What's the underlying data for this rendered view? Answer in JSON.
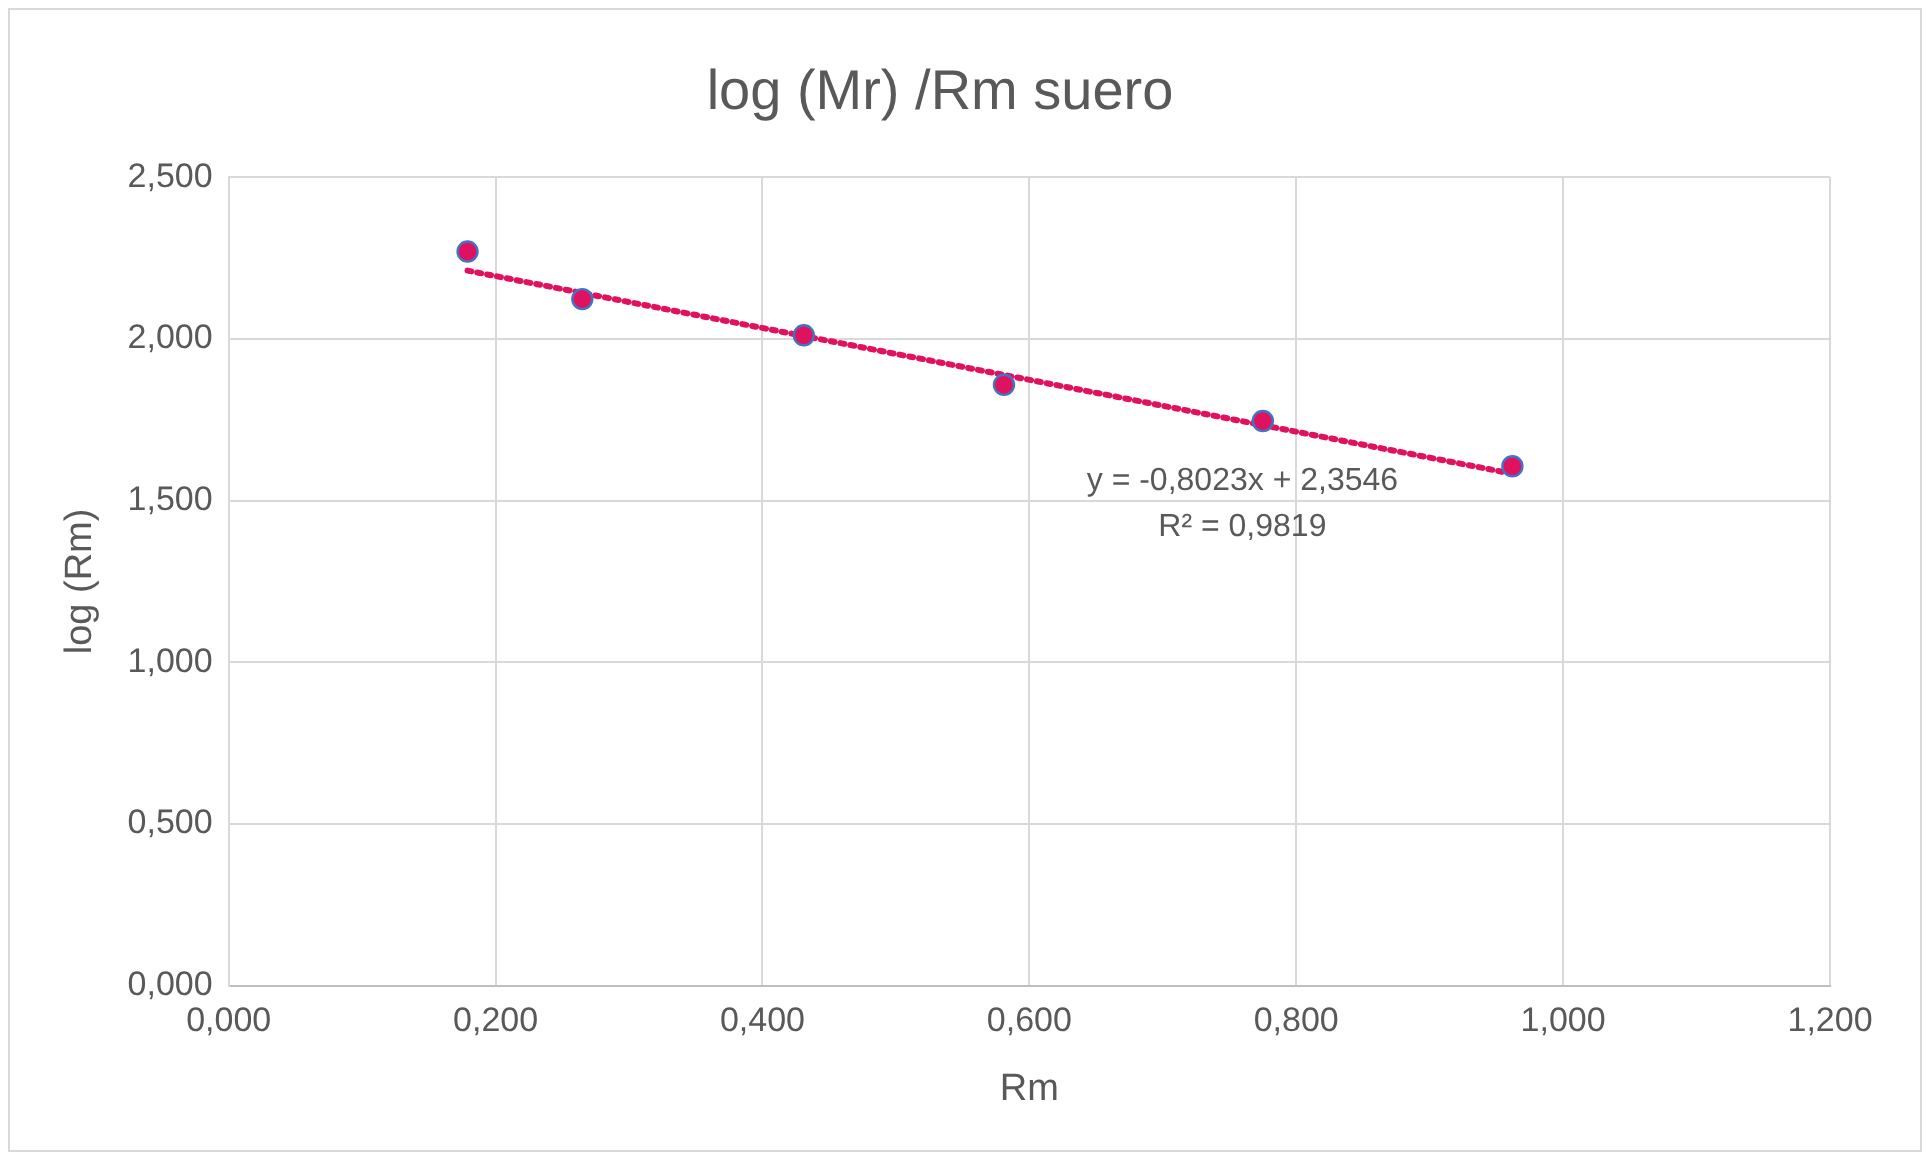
{
  "chart_data": {
    "type": "scatter",
    "title": "log (Mr) /Rm suero",
    "xlabel": "Rm",
    "ylabel": "log (Rm)",
    "series": [
      {
        "color": "#e0115f",
        "marker": "circle",
        "x": [
          0.179,
          0.265,
          0.431,
          0.581,
          0.775,
          0.962
        ],
        "values": [
          2.27,
          2.123,
          2.011,
          1.858,
          1.746,
          1.606
        ]
      },
      {
        "type": "line",
        "color": "#e0115f",
        "marker": "none",
        "line_style": "dotted",
        "x": [
          0.179,
          0.962
        ],
        "values": [
          2.211,
          1.583
        ]
      }
    ],
    "annotations": [
      "y = -0,8023x + 2,3546",
      "R² = 0,9819"
    ],
    "xlim": [
      0,
      1.2
    ],
    "ylim": [
      0,
      2.5
    ],
    "xticks": [
      {
        "value": 0,
        "label": "0,000"
      },
      {
        "value": 0.2,
        "label": "0,200"
      },
      {
        "value": 0.4,
        "label": "0,400"
      },
      {
        "value": 0.6,
        "label": "0,600"
      },
      {
        "value": 0.8,
        "label": "0,800"
      },
      {
        "value": 1,
        "label": "1,000"
      },
      {
        "value": 1.2,
        "label": "1,200"
      }
    ],
    "yticks": [
      {
        "value": 0,
        "label": "0,000"
      },
      {
        "value": 0.5,
        "label": "0,500"
      },
      {
        "value": 1,
        "label": "1,000"
      },
      {
        "value": 1.5,
        "label": "1,500"
      },
      {
        "value": 2,
        "label": "2,000"
      },
      {
        "value": 2.5,
        "label": "2,500"
      }
    ],
    "grid": true,
    "legend": false
  }
}
